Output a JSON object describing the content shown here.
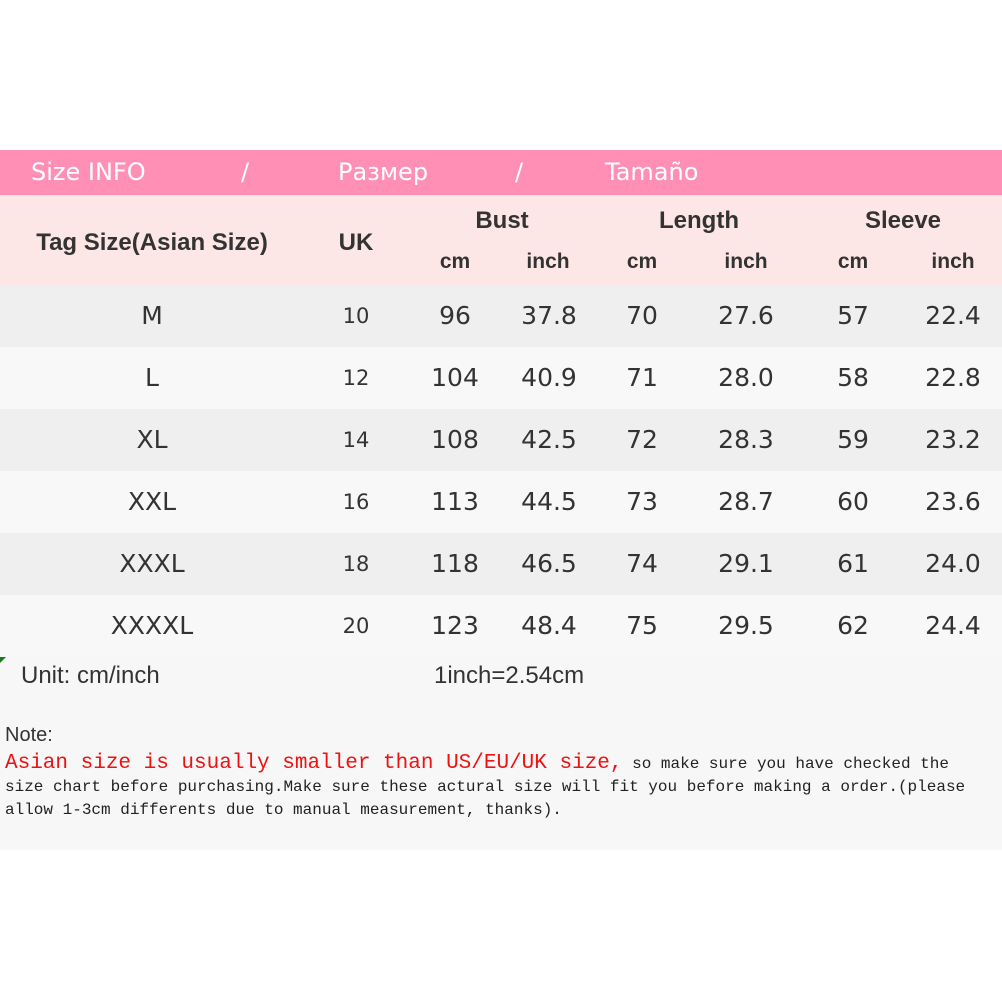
{
  "banner": {
    "title_en": "Size INFO",
    "sep1": "/",
    "title_ru": "Размер",
    "sep2": "/",
    "title_es": "Tamaño",
    "color": "#ff8fb5"
  },
  "header": {
    "tag_size": "Tag Size(Asian Size)",
    "uk": "UK",
    "bust": "Bust",
    "length": "Length",
    "sleeve": "Sleeve",
    "units": [
      "cm",
      "inch",
      "cm",
      "inch",
      "cm",
      "inch"
    ]
  },
  "rows": [
    [
      "M",
      "10",
      "96",
      "37.8",
      "70",
      "27.6",
      "57",
      "22.4"
    ],
    [
      "L",
      "12",
      "104",
      "40.9",
      "71",
      "28.0",
      "58",
      "22.8"
    ],
    [
      "XL",
      "14",
      "108",
      "42.5",
      "72",
      "28.3",
      "59",
      "23.2"
    ],
    [
      "XXL",
      "16",
      "113",
      "44.5",
      "73",
      "28.7",
      "60",
      "23.6"
    ],
    [
      "XXXL",
      "18",
      "118",
      "46.5",
      "74",
      "29.1",
      "61",
      "24.0"
    ],
    [
      "XXXXL",
      "20",
      "123",
      "48.4",
      "75",
      "29.5",
      "62",
      "24.4"
    ]
  ],
  "footer": {
    "unit": "Unit: cm/inch",
    "conversion": "1inch=2.54cm",
    "note_label": "Note:",
    "note_red": "Asian size is usually smaller than US/EU/UK size,",
    "note_rest": " so make sure you have checked the size chart before purchasing.Make sure these actural size will fit you before making a order.(please allow 1-3cm differents due to manual measurement, thanks).",
    "red_color": "#ee1111"
  }
}
